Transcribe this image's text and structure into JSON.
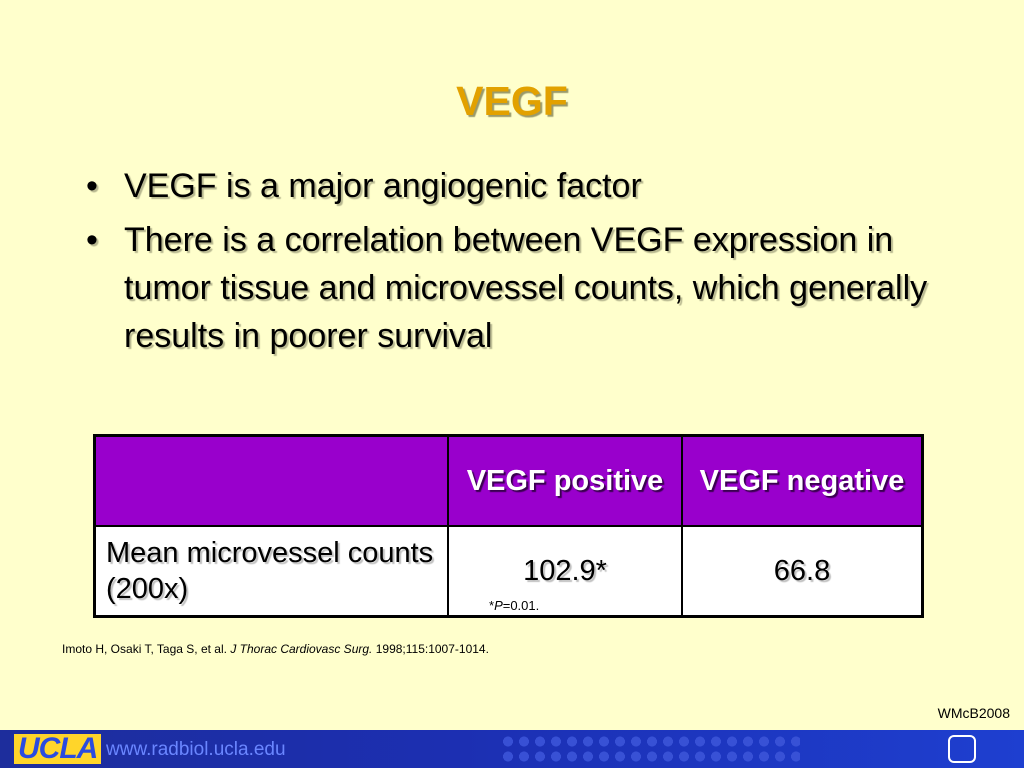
{
  "slide": {
    "title": "VEGF",
    "bullets": [
      "VEGF is a major angiogenic factor",
      "There is a correlation between VEGF expression in tumor tissue and microvessel counts, which generally results in poorer survival"
    ]
  },
  "table": {
    "headers": [
      "",
      "VEGF positive",
      "VEGF negative"
    ],
    "row": {
      "label": "Mean microvessel counts (200x)",
      "positive": "102.9*",
      "negative": "66.8"
    },
    "footnote": {
      "star": "*",
      "p_label": "P",
      "p_value": "=0.01."
    }
  },
  "citation": {
    "authors": "Imoto H, Osaki T, Taga S, et al.",
    "journal": "J Thorac Cardiovasc Surg.",
    "details": "1998;115:1007-1014."
  },
  "watermark": "WMcB2008",
  "footer": {
    "logo": "UCLA",
    "url": "www.radbiol.ucla.edu",
    "icon": "rounded-square-icon"
  }
}
